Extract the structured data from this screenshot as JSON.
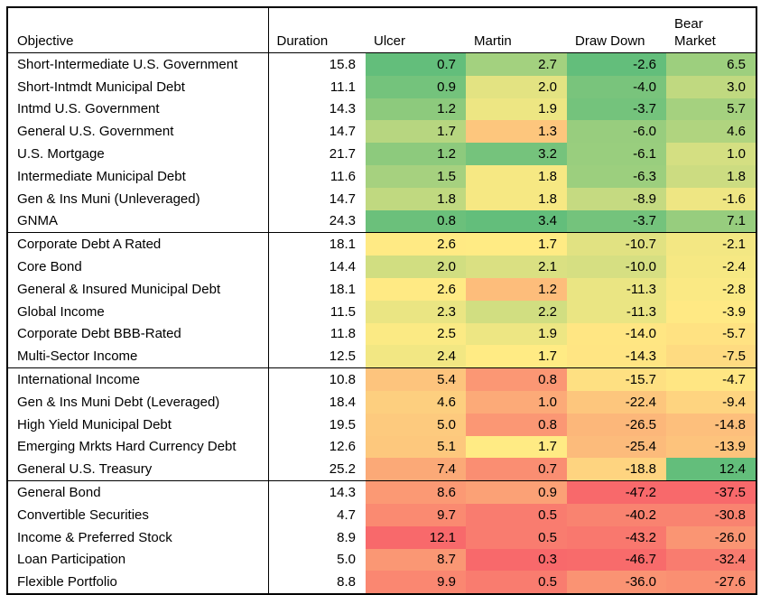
{
  "header": {
    "objective": "Objective",
    "duration": "Duration",
    "ulcer": "Ulcer",
    "martin": "Martin",
    "draw_down": "Draw Down",
    "bear_market_line1": "Bear",
    "bear_market_line2": "Market"
  },
  "colors": {
    "scale_green": "#63BE7B",
    "scale_yellow": "#FFEB84",
    "scale_red": "#F8696B",
    "border": "#000000",
    "background": "#FFFFFF"
  },
  "chart_data": {
    "type": "heatmap",
    "title": "",
    "columns": [
      "Objective",
      "Duration",
      "Ulcer",
      "Martin",
      "Draw Down",
      "Bear Market"
    ],
    "legend": "none",
    "color_scale": {
      "green": "#63BE7B",
      "yellow": "#FFEB84",
      "red": "#F8696B"
    },
    "column_scales": {
      "duration": null,
      "ulcer": {
        "min": 0.7,
        "mid": 2.55,
        "max": 12.1,
        "min_color": "#63BE7B",
        "mid_color": "#FFEB84",
        "max_color": "#F8696B"
      },
      "martin": {
        "min": 0.3,
        "mid": 1.7,
        "max": 3.4,
        "min_color": "#F8696B",
        "mid_color": "#FFEB84",
        "max_color": "#63BE7B"
      },
      "draw_down": {
        "min": -47.2,
        "mid": -12.65,
        "max": -2.6,
        "min_color": "#F8696B",
        "mid_color": "#FFEB84",
        "max_color": "#63BE7B"
      },
      "bear_market": {
        "min": -37.5,
        "mid": -3.35,
        "max": 12.4,
        "min_color": "#F8696B",
        "mid_color": "#FFEB84",
        "max_color": "#63BE7B"
      }
    },
    "groups": [
      {
        "rows": [
          {
            "objective": "Short-Intermediate U.S. Government",
            "duration": 15.8,
            "ulcer": 0.7,
            "martin": 2.7,
            "draw_down": -2.6,
            "bear_market": 6.5
          },
          {
            "objective": "Short-Intmdt Municipal Debt",
            "duration": 11.1,
            "ulcer": 0.9,
            "martin": 2.0,
            "draw_down": -4.0,
            "bear_market": 3.0
          },
          {
            "objective": "Intmd U.S. Government",
            "duration": 14.3,
            "ulcer": 1.2,
            "martin": 1.9,
            "draw_down": -3.7,
            "bear_market": 5.7
          },
          {
            "objective": "General U.S. Government",
            "duration": 14.7,
            "ulcer": 1.7,
            "martin": 1.3,
            "draw_down": -6.0,
            "bear_market": 4.6
          },
          {
            "objective": "U.S. Mortgage",
            "duration": 21.7,
            "ulcer": 1.2,
            "martin": 3.2,
            "draw_down": -6.1,
            "bear_market": 1.0
          },
          {
            "objective": "Intermediate Municipal Debt",
            "duration": 11.6,
            "ulcer": 1.5,
            "martin": 1.8,
            "draw_down": -6.3,
            "bear_market": 1.8
          },
          {
            "objective": "Gen & Ins Muni (Unleveraged)",
            "duration": 14.7,
            "ulcer": 1.8,
            "martin": 1.8,
            "draw_down": -8.9,
            "bear_market": -1.6
          },
          {
            "objective": "GNMA",
            "duration": 24.3,
            "ulcer": 0.8,
            "martin": 3.4,
            "draw_down": -3.7,
            "bear_market": 7.1
          }
        ]
      },
      {
        "rows": [
          {
            "objective": "Corporate Debt A Rated",
            "duration": 18.1,
            "ulcer": 2.6,
            "martin": 1.7,
            "draw_down": -10.7,
            "bear_market": -2.1
          },
          {
            "objective": "Core Bond",
            "duration": 14.4,
            "ulcer": 2.0,
            "martin": 2.1,
            "draw_down": -10.0,
            "bear_market": -2.4
          },
          {
            "objective": "General & Insured Municipal Debt",
            "duration": 18.1,
            "ulcer": 2.6,
            "martin": 1.2,
            "draw_down": -11.3,
            "bear_market": -2.8
          },
          {
            "objective": "Global Income",
            "duration": 11.5,
            "ulcer": 2.3,
            "martin": 2.2,
            "draw_down": -11.3,
            "bear_market": -3.9
          },
          {
            "objective": "Corporate Debt BBB-Rated",
            "duration": 11.8,
            "ulcer": 2.5,
            "martin": 1.9,
            "draw_down": -14.0,
            "bear_market": -5.7
          },
          {
            "objective": "Multi-Sector Income",
            "duration": 12.5,
            "ulcer": 2.4,
            "martin": 1.7,
            "draw_down": -14.3,
            "bear_market": -7.5
          }
        ]
      },
      {
        "rows": [
          {
            "objective": "International Income",
            "duration": 10.8,
            "ulcer": 5.4,
            "martin": 0.8,
            "draw_down": -15.7,
            "bear_market": -4.7
          },
          {
            "objective": "Gen & Ins Muni Debt (Leveraged)",
            "duration": 18.4,
            "ulcer": 4.6,
            "martin": 1.0,
            "draw_down": -22.4,
            "bear_market": -9.4
          },
          {
            "objective": "High Yield Municipal Debt",
            "duration": 19.5,
            "ulcer": 5.0,
            "martin": 0.8,
            "draw_down": -26.5,
            "bear_market": -14.8
          },
          {
            "objective": "Emerging Mrkts Hard Currency Debt",
            "duration": 12.6,
            "ulcer": 5.1,
            "martin": 1.7,
            "draw_down": -25.4,
            "bear_market": -13.9
          },
          {
            "objective": "General U.S. Treasury",
            "duration": 25.2,
            "ulcer": 7.4,
            "martin": 0.7,
            "draw_down": -18.8,
            "bear_market": 12.4
          }
        ]
      },
      {
        "rows": [
          {
            "objective": "General Bond",
            "duration": 14.3,
            "ulcer": 8.6,
            "martin": 0.9,
            "draw_down": -47.2,
            "bear_market": -37.5
          },
          {
            "objective": "Convertible Securities",
            "duration": 4.7,
            "ulcer": 9.7,
            "martin": 0.5,
            "draw_down": -40.2,
            "bear_market": -30.8
          },
          {
            "objective": "Income & Preferred Stock",
            "duration": 8.9,
            "ulcer": 12.1,
            "martin": 0.5,
            "draw_down": -43.2,
            "bear_market": -26.0
          },
          {
            "objective": "Loan Participation",
            "duration": 5.0,
            "ulcer": 8.7,
            "martin": 0.3,
            "draw_down": -46.7,
            "bear_market": -32.4
          },
          {
            "objective": "Flexible Portfolio",
            "duration": 8.8,
            "ulcer": 9.9,
            "martin": 0.5,
            "draw_down": -36.0,
            "bear_market": -27.6
          }
        ]
      }
    ]
  }
}
